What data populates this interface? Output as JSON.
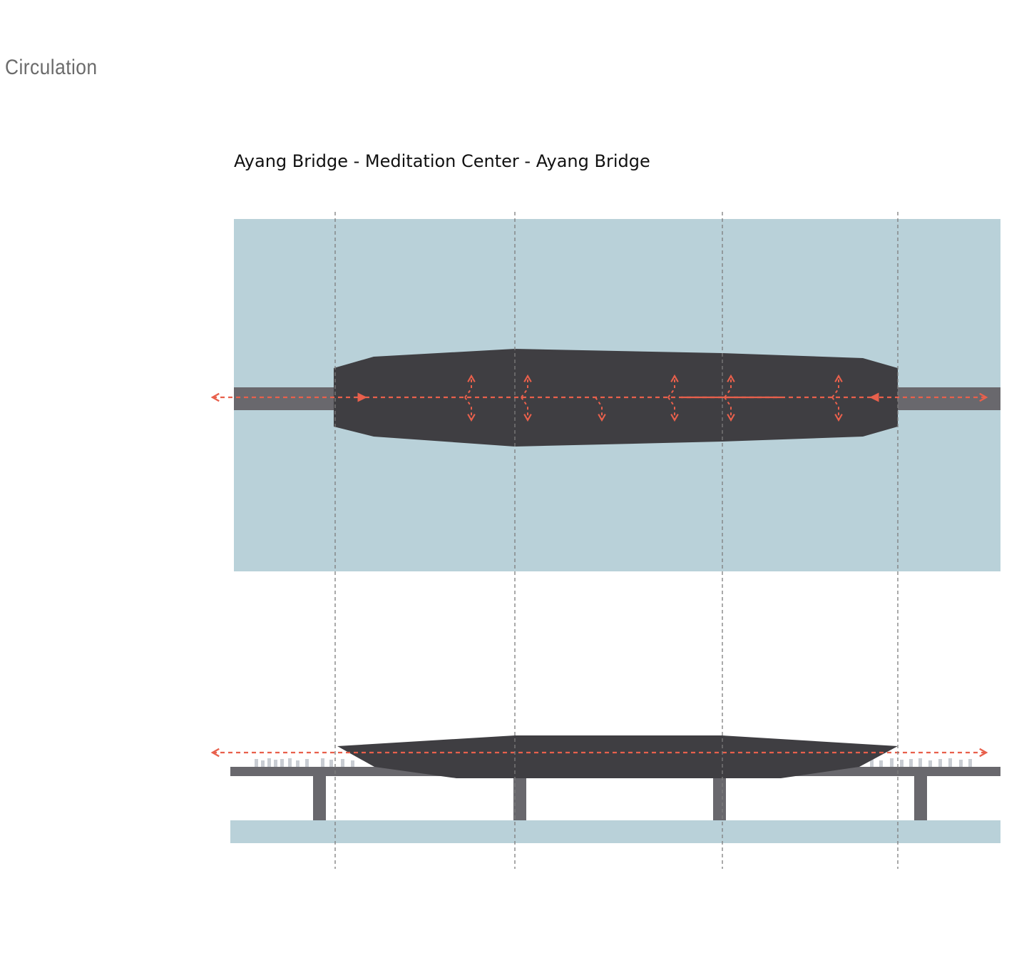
{
  "heading": "Circulation",
  "subtitle": "Ayang Bridge - Meditation Center - Ayang Bridge",
  "colors": {
    "water": "#b9d1d9",
    "building": "#3f3e42",
    "bridge": "#69686d",
    "circulation": "#e8604c",
    "guide": "#8a8a8a"
  },
  "views": [
    "plan",
    "section"
  ]
}
